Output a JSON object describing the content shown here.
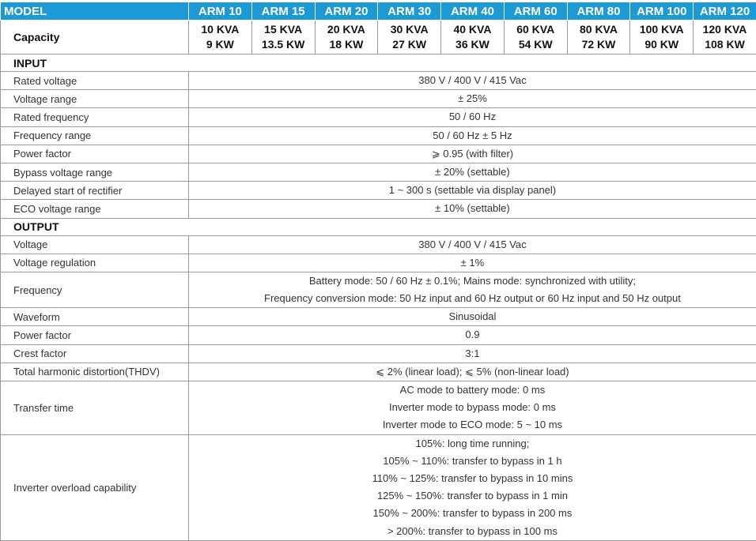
{
  "header": {
    "label": "MODEL",
    "models": [
      "ARM 10",
      "ARM 15",
      "ARM 20",
      "ARM 30",
      "ARM 40",
      "ARM 60",
      "ARM 80",
      "ARM 100",
      "ARM 120"
    ]
  },
  "capacity": {
    "label": "Capacity",
    "values": [
      [
        "10 KVA",
        "9 KW"
      ],
      [
        "15 KVA",
        "13.5 KW"
      ],
      [
        "20 KVA",
        "18 KW"
      ],
      [
        "30 KVA",
        "27 KW"
      ],
      [
        "40 KVA",
        "36 KW"
      ],
      [
        "60 KVA",
        "54 KW"
      ],
      [
        "80 KVA",
        "72 KW"
      ],
      [
        "100 KVA",
        "90 KW"
      ],
      [
        "120 KVA",
        "108 KW"
      ]
    ]
  },
  "sections": [
    {
      "title": "INPUT",
      "rows": [
        {
          "label": "Rated voltage",
          "lines": [
            "380 V / 400 V / 415 Vac"
          ]
        },
        {
          "label": "Voltage range",
          "lines": [
            "± 25%"
          ]
        },
        {
          "label": "Rated frequency",
          "lines": [
            "50 / 60 Hz"
          ]
        },
        {
          "label": "Frequency range",
          "lines": [
            "50 / 60 Hz ± 5 Hz"
          ]
        },
        {
          "label": "Power factor",
          "lines": [
            "⩾ 0.95 (with filter)"
          ]
        },
        {
          "label": "Bypass voltage range",
          "lines": [
            "± 20% (settable)"
          ]
        },
        {
          "label": "Delayed start of rectifier",
          "lines": [
            "1 ~ 300 s (settable via display panel)"
          ]
        },
        {
          "label": "ECO voltage range",
          "lines": [
            "± 10% (settable)"
          ]
        }
      ]
    },
    {
      "title": "OUTPUT",
      "rows": [
        {
          "label": "Voltage",
          "lines": [
            "380 V / 400 V / 415 Vac"
          ]
        },
        {
          "label": "Voltage regulation",
          "lines": [
            "± 1%"
          ]
        },
        {
          "label": "Frequency",
          "lines": [
            "Battery mode: 50 / 60 Hz ± 0.1%; Mains mode: synchronized with utility;",
            "Frequency conversion mode: 50 Hz input and 60 Hz output or 60 Hz input and 50 Hz output"
          ]
        },
        {
          "label": "Waveform",
          "lines": [
            "Sinusoidal"
          ]
        },
        {
          "label": "Power factor",
          "lines": [
            "0.9"
          ]
        },
        {
          "label": "Crest factor",
          "lines": [
            "3:1"
          ]
        },
        {
          "label": "Total harmonic distortion(THDV)",
          "lines": [
            "⩽ 2% (linear load); ⩽ 5% (non-linear load)"
          ]
        },
        {
          "label": "Transfer time",
          "lines": [
            "AC mode to battery mode: 0 ms",
            "Inverter mode to bypass mode: 0 ms",
            "Inverter mode to ECO mode: 5 ~ 10 ms"
          ]
        },
        {
          "label": "Inverter overload capability",
          "lines": [
            "105%: long time running;",
            "105% ~ 110%: transfer to bypass in 1 h",
            "110% ~ 125%: transfer to bypass in 10 mins",
            "125% ~ 150%: transfer to bypass in 1 min",
            "150% ~ 200%: transfer to bypass in 200 ms",
            "> 200%: transfer to bypass in 100 ms"
          ]
        }
      ]
    }
  ]
}
